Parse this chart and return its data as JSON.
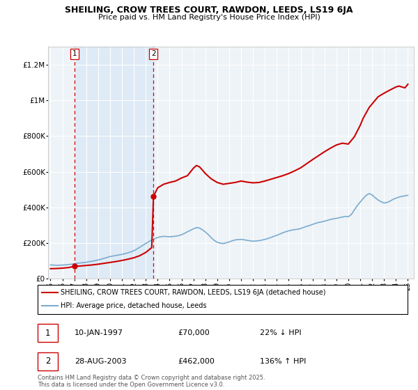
{
  "title": "SHEILING, CROW TREES COURT, RAWDON, LEEDS, LS19 6JA",
  "subtitle": "Price paid vs. HM Land Registry's House Price Index (HPI)",
  "ylim": [
    0,
    1300000
  ],
  "yticks": [
    0,
    200000,
    400000,
    600000,
    800000,
    1000000,
    1200000
  ],
  "ytick_labels": [
    "£0",
    "£200K",
    "£400K",
    "£600K",
    "£800K",
    "£1M",
    "£1.2M"
  ],
  "xlim_start": 1994.8,
  "xlim_end": 2025.5,
  "xtick_years": [
    1995,
    1996,
    1997,
    1998,
    1999,
    2000,
    2001,
    2002,
    2003,
    2004,
    2005,
    2006,
    2007,
    2008,
    2009,
    2010,
    2011,
    2012,
    2013,
    2014,
    2015,
    2016,
    2017,
    2018,
    2019,
    2020,
    2021,
    2022,
    2023,
    2024,
    2025
  ],
  "transaction1_x": 1997.03,
  "transaction1_y": 70000,
  "transaction2_x": 2003.65,
  "transaction2_y": 462000,
  "red_line_color": "#cc0000",
  "blue_line_color": "#7aabcf",
  "shaded_region_color": "#deeaf5",
  "vline_color": "#cc0000",
  "legend_line1": "SHEILING, CROW TREES COURT, RAWDON, LEEDS, LS19 6JA (detached house)",
  "legend_line2": "HPI: Average price, detached house, Leeds",
  "annotation1_date": "10-JAN-1997",
  "annotation1_price": "£70,000",
  "annotation1_hpi": "22% ↓ HPI",
  "annotation2_date": "28-AUG-2003",
  "annotation2_price": "£462,000",
  "annotation2_hpi": "136% ↑ HPI",
  "footer": "Contains HM Land Registry data © Crown copyright and database right 2025.\nThis data is licensed under the Open Government Licence v3.0.",
  "hpi_data_x": [
    1995.0,
    1995.25,
    1995.5,
    1995.75,
    1996.0,
    1996.25,
    1996.5,
    1996.75,
    1997.0,
    1997.25,
    1997.5,
    1997.75,
    1998.0,
    1998.25,
    1998.5,
    1998.75,
    1999.0,
    1999.25,
    1999.5,
    1999.75,
    2000.0,
    2000.25,
    2000.5,
    2000.75,
    2001.0,
    2001.25,
    2001.5,
    2001.75,
    2002.0,
    2002.25,
    2002.5,
    2002.75,
    2003.0,
    2003.25,
    2003.5,
    2003.75,
    2004.0,
    2004.25,
    2004.5,
    2004.75,
    2005.0,
    2005.25,
    2005.5,
    2005.75,
    2006.0,
    2006.25,
    2006.5,
    2006.75,
    2007.0,
    2007.25,
    2007.5,
    2007.75,
    2008.0,
    2008.25,
    2008.5,
    2008.75,
    2009.0,
    2009.25,
    2009.5,
    2009.75,
    2010.0,
    2010.25,
    2010.5,
    2010.75,
    2011.0,
    2011.25,
    2011.5,
    2011.75,
    2012.0,
    2012.25,
    2012.5,
    2012.75,
    2013.0,
    2013.25,
    2013.5,
    2013.75,
    2014.0,
    2014.25,
    2014.5,
    2014.75,
    2015.0,
    2015.25,
    2015.5,
    2015.75,
    2016.0,
    2016.25,
    2016.5,
    2016.75,
    2017.0,
    2017.25,
    2017.5,
    2017.75,
    2018.0,
    2018.25,
    2018.5,
    2018.75,
    2019.0,
    2019.25,
    2019.5,
    2019.75,
    2020.0,
    2020.25,
    2020.5,
    2020.75,
    2021.0,
    2021.25,
    2021.5,
    2021.75,
    2022.0,
    2022.25,
    2022.5,
    2022.75,
    2023.0,
    2023.25,
    2023.5,
    2023.75,
    2024.0,
    2024.25,
    2024.5,
    2024.75,
    2025.0
  ],
  "hpi_data_y": [
    78000,
    77000,
    76000,
    76500,
    77000,
    78500,
    80000,
    82000,
    85000,
    87000,
    89000,
    91000,
    93000,
    96000,
    99000,
    102000,
    106000,
    110000,
    115000,
    120000,
    125000,
    128000,
    131000,
    134000,
    137000,
    141000,
    146000,
    151000,
    158000,
    167000,
    177000,
    188000,
    198000,
    208000,
    218000,
    225000,
    232000,
    236000,
    238000,
    237000,
    236000,
    237000,
    239000,
    242000,
    247000,
    255000,
    264000,
    272000,
    280000,
    287000,
    285000,
    275000,
    263000,
    248000,
    230000,
    215000,
    205000,
    200000,
    198000,
    202000,
    207000,
    213000,
    218000,
    220000,
    221000,
    219000,
    216000,
    213000,
    211000,
    212000,
    214000,
    217000,
    221000,
    226000,
    232000,
    238000,
    244000,
    251000,
    258000,
    264000,
    269000,
    273000,
    276000,
    278000,
    282000,
    288000,
    294000,
    299000,
    305000,
    311000,
    316000,
    319000,
    323000,
    328000,
    333000,
    336000,
    339000,
    343000,
    346000,
    350000,
    348000,
    360000,
    385000,
    410000,
    430000,
    450000,
    468000,
    478000,
    470000,
    455000,
    442000,
    432000,
    425000,
    428000,
    435000,
    445000,
    452000,
    458000,
    462000,
    465000,
    468000
  ],
  "property_data_x": [
    1995.0,
    1995.5,
    1996.0,
    1996.5,
    1997.03,
    1997.5,
    1998.0,
    1998.5,
    1999.0,
    1999.5,
    2000.0,
    2000.5,
    2001.0,
    2001.5,
    2002.0,
    2002.5,
    2003.0,
    2003.5,
    2003.65,
    2004.0,
    2004.5,
    2005.0,
    2005.5,
    2006.0,
    2006.5,
    2007.0,
    2007.25,
    2007.5,
    2007.75,
    2008.0,
    2008.5,
    2009.0,
    2009.5,
    2010.0,
    2010.5,
    2011.0,
    2011.5,
    2012.0,
    2012.5,
    2013.0,
    2013.5,
    2014.0,
    2014.5,
    2015.0,
    2015.5,
    2016.0,
    2016.5,
    2017.0,
    2017.5,
    2018.0,
    2018.5,
    2019.0,
    2019.5,
    2020.0,
    2020.5,
    2021.0,
    2021.25,
    2021.5,
    2021.75,
    2022.0,
    2022.25,
    2022.5,
    2023.0,
    2023.5,
    2024.0,
    2024.25,
    2024.5,
    2024.75,
    2025.0
  ],
  "property_data_y": [
    57000,
    58000,
    60000,
    63000,
    70000,
    72000,
    75000,
    78000,
    82000,
    87000,
    92000,
    97000,
    103000,
    110000,
    118000,
    130000,
    148000,
    175000,
    462000,
    510000,
    530000,
    540000,
    548000,
    565000,
    578000,
    620000,
    635000,
    628000,
    610000,
    590000,
    560000,
    540000,
    530000,
    535000,
    540000,
    548000,
    542000,
    538000,
    540000,
    548000,
    558000,
    568000,
    578000,
    590000,
    605000,
    622000,
    645000,
    668000,
    690000,
    712000,
    732000,
    750000,
    760000,
    755000,
    795000,
    860000,
    900000,
    930000,
    960000,
    980000,
    1000000,
    1020000,
    1040000,
    1058000,
    1075000,
    1080000,
    1075000,
    1070000,
    1090000
  ]
}
